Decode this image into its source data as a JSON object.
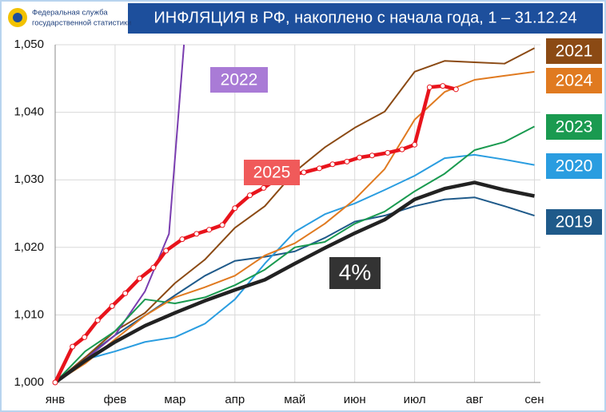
{
  "header": {
    "logo_lines": [
      "Федеральная служба",
      "государственной статистики"
    ]
  },
  "chart_data": {
    "type": "line",
    "title": "ИНФЛЯЦИЯ в РФ, накоплено с начала года, 1 – 31.12.24",
    "xlim": [
      0,
      8.1
    ],
    "xticks": [
      {
        "value": 0,
        "label": "янв"
      },
      {
        "value": 1,
        "label": "фев"
      },
      {
        "value": 2,
        "label": "мар"
      },
      {
        "value": 3,
        "label": "апр"
      },
      {
        "value": 4,
        "label": "май"
      },
      {
        "value": 5,
        "label": "июн"
      },
      {
        "value": 6,
        "label": "июл"
      },
      {
        "value": 7,
        "label": "авг"
      },
      {
        "value": 8,
        "label": "сен"
      }
    ],
    "ylim": [
      1.0,
      1.05
    ],
    "yticks": [
      {
        "value": 1.0,
        "label": "1,000"
      },
      {
        "value": 1.01,
        "label": "1,010"
      },
      {
        "value": 1.02,
        "label": "1,020"
      },
      {
        "value": 1.03,
        "label": "1,030"
      },
      {
        "value": 1.04,
        "label": "1,040"
      },
      {
        "value": 1.05,
        "label": "1,050"
      }
    ],
    "grid": true,
    "series": [
      {
        "name": "2019",
        "color": "#1f5a8a",
        "width": 2,
        "x": [
          0,
          0.5,
          1,
          1.5,
          2,
          2.5,
          3,
          3.5,
          4,
          4.5,
          5,
          5.5,
          6,
          6.5,
          7,
          7.5,
          8
        ],
        "values": [
          1.0,
          1.0037,
          1.007,
          1.0099,
          1.0129,
          1.0158,
          1.018,
          1.0186,
          1.0194,
          1.0214,
          1.0238,
          1.0247,
          1.0261,
          1.0271,
          1.0274,
          1.0261,
          1.0247
        ]
      },
      {
        "name": "2020",
        "color": "#2a9de0",
        "width": 2,
        "x": [
          0,
          0.5,
          1,
          1.5,
          2,
          2.5,
          3,
          3.5,
          4,
          4.5,
          5,
          5.5,
          6,
          6.5,
          7,
          7.5,
          8
        ],
        "values": [
          1.0,
          1.0034,
          1.0046,
          1.006,
          1.0067,
          1.0087,
          1.0123,
          1.0176,
          1.0223,
          1.0249,
          1.0265,
          1.0285,
          1.0306,
          1.0332,
          1.0337,
          1.033,
          1.0322
        ]
      },
      {
        "name": "2021",
        "color": "#8b4a14",
        "width": 2,
        "x": [
          0,
          0.5,
          1,
          1.5,
          2,
          2.5,
          3,
          3.5,
          4,
          4.5,
          5,
          5.5,
          6,
          6.5,
          7,
          7.5,
          8
        ],
        "values": [
          1.0,
          1.0037,
          1.0076,
          1.0103,
          1.0147,
          1.0182,
          1.0229,
          1.0261,
          1.0312,
          1.0348,
          1.0377,
          1.0401,
          1.046,
          1.0476,
          1.0474,
          1.0472,
          1.0495
        ]
      },
      {
        "name": "2022",
        "color": "#7a3db0",
        "width": 2,
        "x": [
          0,
          0.5,
          1,
          1.5,
          1.9,
          2.15
        ],
        "values": [
          1.0,
          1.0034,
          1.007,
          1.0135,
          1.022,
          1.05
        ]
      },
      {
        "name": "2023",
        "color": "#1a9a50",
        "width": 2,
        "x": [
          0,
          0.5,
          1,
          1.5,
          2,
          2.5,
          3,
          3.5,
          4,
          4.5,
          5,
          5.5,
          6,
          6.5,
          7,
          7.5,
          8
        ],
        "values": [
          1.0,
          1.0046,
          1.0076,
          1.0123,
          1.0117,
          1.0126,
          1.0144,
          1.0167,
          1.02,
          1.0208,
          1.0235,
          1.0253,
          1.0283,
          1.0309,
          1.0344,
          1.0356,
          1.0379
        ]
      },
      {
        "name": "2024",
        "color": "#e07a20",
        "width": 2,
        "x": [
          0,
          0.5,
          1,
          1.5,
          2,
          2.5,
          3,
          3.5,
          4,
          4.5,
          5,
          5.5,
          6,
          6.5,
          7,
          7.5,
          8
        ],
        "values": [
          1.0,
          1.0028,
          1.0064,
          1.0099,
          1.0126,
          1.0141,
          1.0158,
          1.0188,
          1.0206,
          1.0235,
          1.0271,
          1.0316,
          1.0389,
          1.043,
          1.0448,
          1.0454,
          1.046
        ]
      },
      {
        "name": "4%",
        "color": "#222222",
        "width": 4.5,
        "x": [
          0,
          0.5,
          1,
          1.5,
          2,
          2.5,
          3,
          3.5,
          4,
          4.5,
          5,
          5.5,
          6,
          6.5,
          7,
          7.5,
          8
        ],
        "values": [
          1.0,
          1.0032,
          1.006,
          1.0084,
          1.0103,
          1.0121,
          1.0137,
          1.0152,
          1.0176,
          1.0199,
          1.0221,
          1.0241,
          1.0271,
          1.0287,
          1.0296,
          1.0285,
          1.0276
        ]
      },
      {
        "name": "2025",
        "color": "#e8141c",
        "width": 4.5,
        "markers": true,
        "x": [
          0,
          0.29,
          0.49,
          0.71,
          0.95,
          1.17,
          1.41,
          1.64,
          1.85,
          2.12,
          2.36,
          2.57,
          2.79,
          3.0,
          3.25,
          3.48,
          3.75,
          4.15,
          4.41,
          4.63,
          4.87,
          5.08,
          5.29,
          5.55,
          5.79,
          6.0,
          6.25,
          6.47,
          6.69
        ],
        "values": [
          1.0,
          1.0053,
          1.0067,
          1.0092,
          1.0113,
          1.0132,
          1.0154,
          1.017,
          1.0195,
          1.0212,
          1.022,
          1.0226,
          1.0233,
          1.0258,
          1.0277,
          1.0288,
          1.0304,
          1.0311,
          1.0317,
          1.0323,
          1.0327,
          1.0333,
          1.0336,
          1.034,
          1.0345,
          1.0352,
          1.0437,
          1.0439,
          1.0434
        ]
      }
    ]
  }
}
